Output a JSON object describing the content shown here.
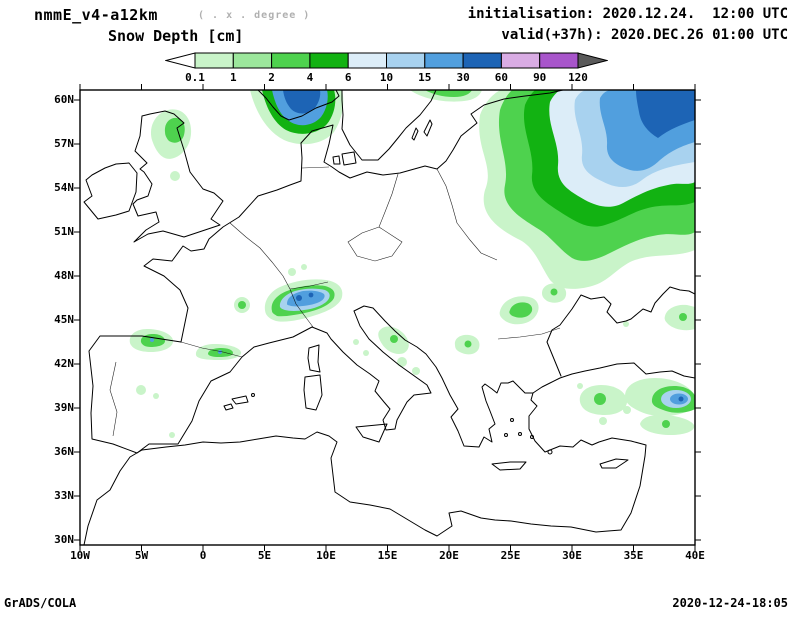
{
  "header": {
    "model": "nmmE_v4-a12km",
    "resolution_note": "( . x . degree )",
    "field_title": "Snow Depth [cm]",
    "init_label": "initialisation: 2020.12.24.  12:00 UTC",
    "valid_label": "valid(+37h): 2020.DEC.26 01:00 UTC"
  },
  "colorbar": {
    "units": "cm",
    "tick_labels": [
      "0.1",
      "1",
      "2",
      "4",
      "6",
      "10",
      "15",
      "30",
      "60",
      "90",
      "120"
    ],
    "colors": [
      "#ffffff",
      "#c9f4c9",
      "#9ce79c",
      "#4ed24e",
      "#12b212",
      "#dcedf8",
      "#a8d2ef",
      "#519fde",
      "#1d64b5",
      "#d9ace4",
      "#a855cb",
      "#5a5a5a"
    ]
  },
  "map": {
    "lat_labels": [
      "60N",
      "57N",
      "54N",
      "51N",
      "48N",
      "45N",
      "42N",
      "39N",
      "36N",
      "33N",
      "30N"
    ],
    "lon_labels": [
      "10W",
      "5W",
      "0",
      "5E",
      "10E",
      "15E",
      "20E",
      "25E",
      "30E",
      "35E",
      "40E"
    ]
  },
  "footer": {
    "credit": "GrADS/COLA",
    "timestamp": "2020-12-24-18:05"
  }
}
